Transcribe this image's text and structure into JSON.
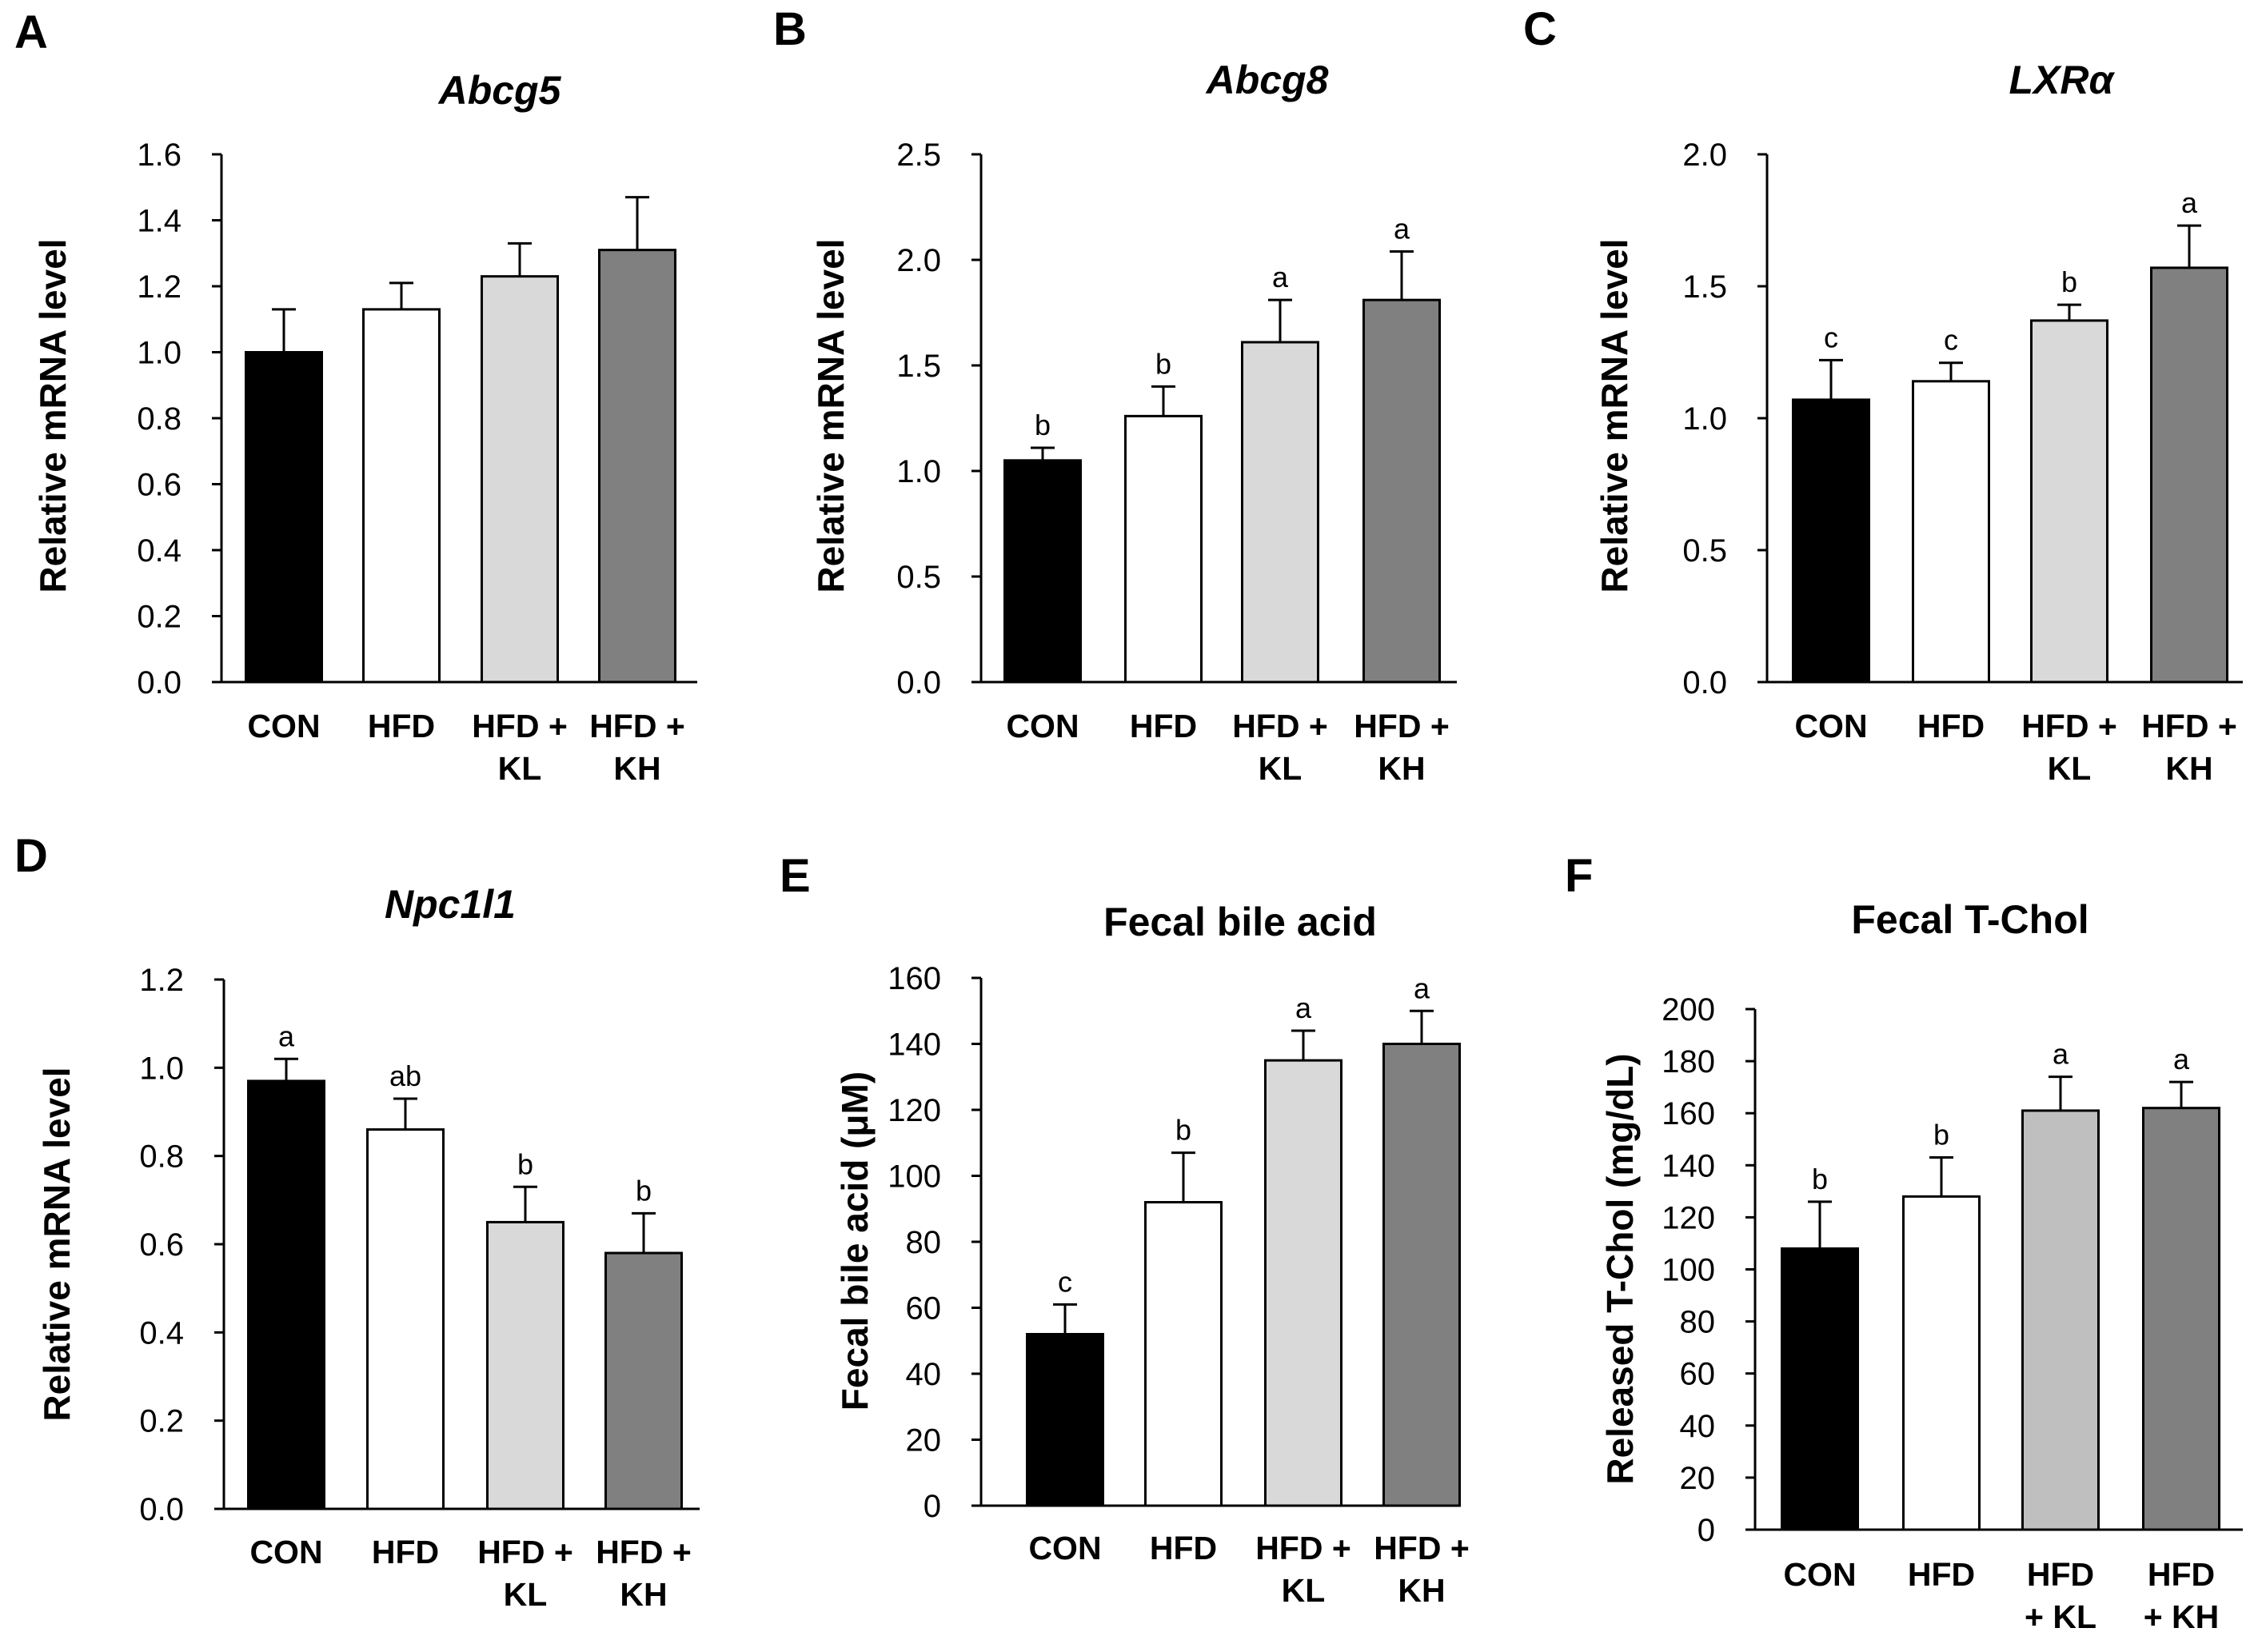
{
  "figure": {
    "panels": [
      "A",
      "B",
      "C",
      "D",
      "E",
      "F"
    ]
  },
  "chart_data": [
    {
      "panel": "A",
      "type": "bar",
      "title": "Abcg5",
      "title_italic": true,
      "ylabel": "Relative mRNA level",
      "categories": [
        [
          "CON"
        ],
        [
          "HFD"
        ],
        [
          "HFD +",
          "KL"
        ],
        [
          "HFD +",
          "KH"
        ]
      ],
      "values": [
        1.0,
        1.13,
        1.23,
        1.31
      ],
      "errors": [
        0.13,
        0.08,
        0.1,
        0.16
      ],
      "significance": [
        "",
        "",
        "",
        ""
      ],
      "ylim": [
        0,
        1.6
      ],
      "yticks": [
        "0.0",
        "0.2",
        "0.4",
        "0.6",
        "0.8",
        "1.0",
        "1.2",
        "1.4",
        "1.6"
      ],
      "colors": [
        "#000000",
        "#ffffff",
        "#d9d9d9",
        "#808080"
      ]
    },
    {
      "panel": "B",
      "type": "bar",
      "title": "Abcg8",
      "title_italic": true,
      "ylabel": "Relative mRNA level",
      "categories": [
        [
          "CON"
        ],
        [
          "HFD"
        ],
        [
          "HFD +",
          "KL"
        ],
        [
          "HFD +",
          "KH"
        ]
      ],
      "values": [
        1.05,
        1.26,
        1.61,
        1.81
      ],
      "errors": [
        0.06,
        0.14,
        0.2,
        0.23
      ],
      "significance": [
        "b",
        "b",
        "a",
        "a"
      ],
      "ylim": [
        0,
        2.5
      ],
      "yticks": [
        "0.0",
        "0.5",
        "1.0",
        "1.5",
        "2.0",
        "2.5"
      ],
      "colors": [
        "#000000",
        "#ffffff",
        "#d9d9d9",
        "#808080"
      ]
    },
    {
      "panel": "C",
      "type": "bar",
      "title": "LXRα",
      "title_italic": true,
      "ylabel": "Relative mRNA level",
      "categories": [
        [
          "CON"
        ],
        [
          "HFD"
        ],
        [
          "HFD +",
          "KL"
        ],
        [
          "HFD +",
          "KH"
        ]
      ],
      "values": [
        1.07,
        1.14,
        1.37,
        1.57
      ],
      "errors": [
        0.15,
        0.07,
        0.06,
        0.16
      ],
      "significance": [
        "c",
        "c",
        "b",
        "a"
      ],
      "ylim": [
        0,
        2.0
      ],
      "yticks": [
        "0.0",
        "0.5",
        "1.0",
        "1.5",
        "2.0"
      ],
      "colors": [
        "#000000",
        "#ffffff",
        "#d9d9d9",
        "#808080"
      ]
    },
    {
      "panel": "D",
      "type": "bar",
      "title": "Npc1l1",
      "title_italic": true,
      "ylabel": "Relative mRNA level",
      "categories": [
        [
          "CON"
        ],
        [
          "HFD"
        ],
        [
          "HFD +",
          "KL"
        ],
        [
          "HFD +",
          "KH"
        ]
      ],
      "values": [
        0.97,
        0.86,
        0.65,
        0.58
      ],
      "errors": [
        0.05,
        0.07,
        0.08,
        0.09
      ],
      "significance": [
        "a",
        "ab",
        "b",
        "b"
      ],
      "ylim": [
        0,
        1.2
      ],
      "yticks": [
        "0.0",
        "0.2",
        "0.4",
        "0.6",
        "0.8",
        "1.0",
        "1.2"
      ],
      "colors": [
        "#000000",
        "#ffffff",
        "#d9d9d9",
        "#808080"
      ]
    },
    {
      "panel": "E",
      "type": "bar",
      "title": "Fecal bile acid",
      "title_italic": false,
      "ylabel": "Fecal bile acid (μM)",
      "categories": [
        [
          "CON"
        ],
        [
          "HFD"
        ],
        [
          "HFD +",
          "KL"
        ],
        [
          "HFD +",
          "KH"
        ]
      ],
      "values": [
        52,
        92,
        135,
        140
      ],
      "errors": [
        9,
        15,
        9,
        10
      ],
      "significance": [
        "c",
        "b",
        "a",
        "a"
      ],
      "ylim": [
        0,
        160
      ],
      "yticks": [
        "0",
        "20",
        "40",
        "60",
        "80",
        "100",
        "120",
        "140",
        "160"
      ],
      "colors": [
        "#000000",
        "#ffffff",
        "#d9d9d9",
        "#808080"
      ]
    },
    {
      "panel": "F",
      "type": "bar",
      "title": "Fecal T-Chol",
      "title_italic": false,
      "ylabel": "Released T-Chol (mg/dL)",
      "categories": [
        [
          "CON"
        ],
        [
          "HFD"
        ],
        [
          "HFD",
          "+ KL"
        ],
        [
          "HFD",
          "+ KH"
        ]
      ],
      "values": [
        108,
        128,
        161,
        162
      ],
      "errors": [
        18,
        15,
        13,
        10
      ],
      "significance": [
        "b",
        "b",
        "a",
        "a"
      ],
      "ylim": [
        0,
        200
      ],
      "yticks": [
        "0",
        "20",
        "40",
        "60",
        "80",
        "100",
        "120",
        "140",
        "160",
        "180",
        "200"
      ],
      "colors": [
        "#000000",
        "#ffffff",
        "#bfbfbf",
        "#808080"
      ]
    }
  ]
}
